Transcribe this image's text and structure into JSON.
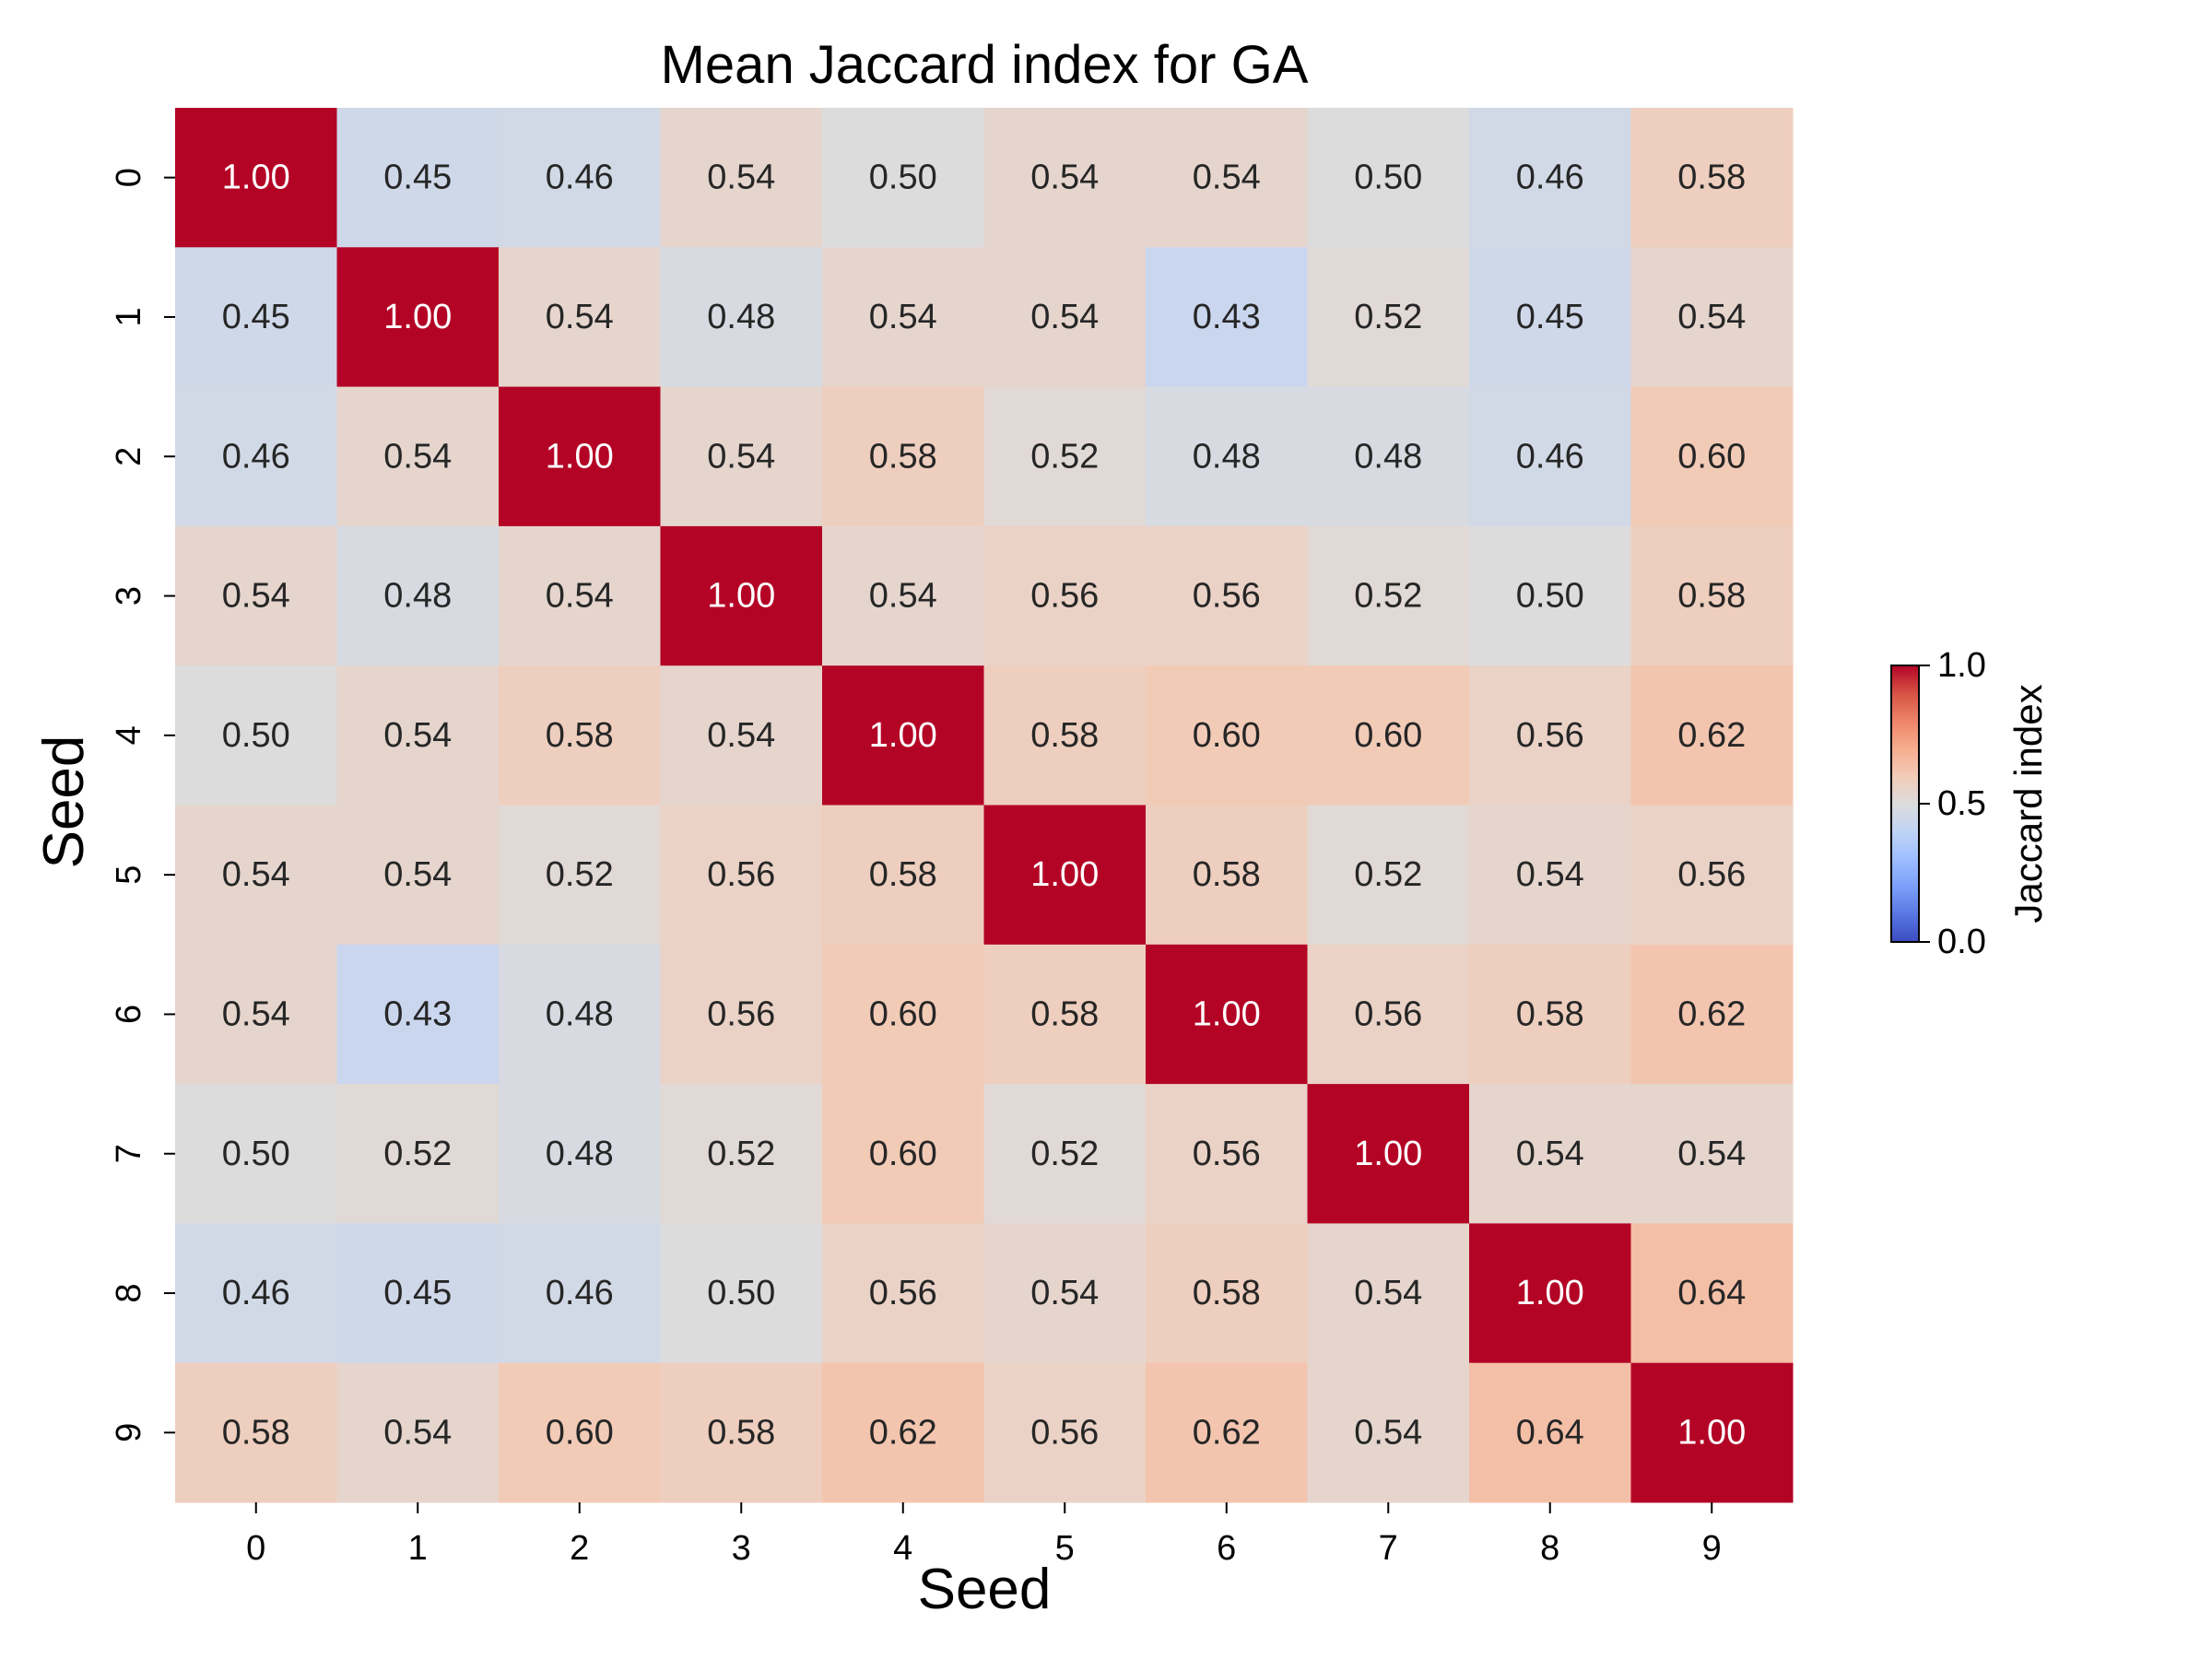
{
  "chart_data": {
    "type": "heatmap",
    "title": "Mean Jaccard index for GA",
    "xlabel": "Seed",
    "ylabel": "Seed",
    "x_categories": [
      "0",
      "1",
      "2",
      "3",
      "4",
      "5",
      "6",
      "7",
      "8",
      "9"
    ],
    "y_categories": [
      "0",
      "1",
      "2",
      "3",
      "4",
      "5",
      "6",
      "7",
      "8",
      "9"
    ],
    "values": [
      [
        1.0,
        0.45,
        0.46,
        0.54,
        0.5,
        0.54,
        0.54,
        0.5,
        0.46,
        0.58
      ],
      [
        0.45,
        1.0,
        0.54,
        0.48,
        0.54,
        0.54,
        0.43,
        0.52,
        0.45,
        0.54
      ],
      [
        0.46,
        0.54,
        1.0,
        0.54,
        0.58,
        0.52,
        0.48,
        0.48,
        0.46,
        0.6
      ],
      [
        0.54,
        0.48,
        0.54,
        1.0,
        0.54,
        0.56,
        0.56,
        0.52,
        0.5,
        0.58
      ],
      [
        0.5,
        0.54,
        0.58,
        0.54,
        1.0,
        0.58,
        0.6,
        0.6,
        0.56,
        0.62
      ],
      [
        0.54,
        0.54,
        0.52,
        0.56,
        0.58,
        1.0,
        0.58,
        0.52,
        0.54,
        0.56
      ],
      [
        0.54,
        0.43,
        0.48,
        0.56,
        0.6,
        0.58,
        1.0,
        0.56,
        0.58,
        0.62
      ],
      [
        0.5,
        0.52,
        0.48,
        0.52,
        0.6,
        0.52,
        0.56,
        1.0,
        0.54,
        0.54
      ],
      [
        0.46,
        0.45,
        0.46,
        0.5,
        0.56,
        0.54,
        0.58,
        0.54,
        1.0,
        0.64
      ],
      [
        0.58,
        0.54,
        0.6,
        0.58,
        0.62,
        0.56,
        0.62,
        0.54,
        0.64,
        1.0
      ]
    ],
    "value_format": "2 decimals",
    "colormap": "coolwarm",
    "vmin": 0.0,
    "vmax": 1.0,
    "colorbar": {
      "label": "Jaccard index",
      "ticks": [
        "0.0",
        "0.5",
        "1.0"
      ],
      "tick_values": [
        0.0,
        0.5,
        1.0
      ]
    },
    "grid": false
  }
}
